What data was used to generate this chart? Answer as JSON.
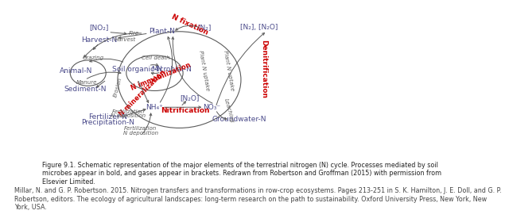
{
  "background_color": "#ffffff",
  "fig_caption": "Figure 9.1. Schematic representation of the major elements of the terrestrial nitrogen (N) cycle. Processes mediated by soil\nmicrobes appear in bold, and gases appear in brackets. Redrawn from Robertson and Groffman (2015) with permission from\nElsevier Limited.",
  "citation": "Millar, N. and G. P. Robertson. 2015. Nitrogen transfers and transformations in row-crop ecosystems. Pages 213-251 in S. K. Hamilton, J. E. Doll, and G. P.\nRobertson, editors. The ecology of agricultural landscapes: long-term research on the path to sustainability. Oxford University Press, New York, New\nYork, USA.",
  "node_color": "#4a4a8a",
  "process_color": "#cc0000",
  "arrow_color": "#5a5a5a",
  "font_size_nodes": 6.5,
  "font_size_process": 6.5,
  "font_size_small": 5.0,
  "font_size_caption": 5.8,
  "font_size_citation": 5.8
}
